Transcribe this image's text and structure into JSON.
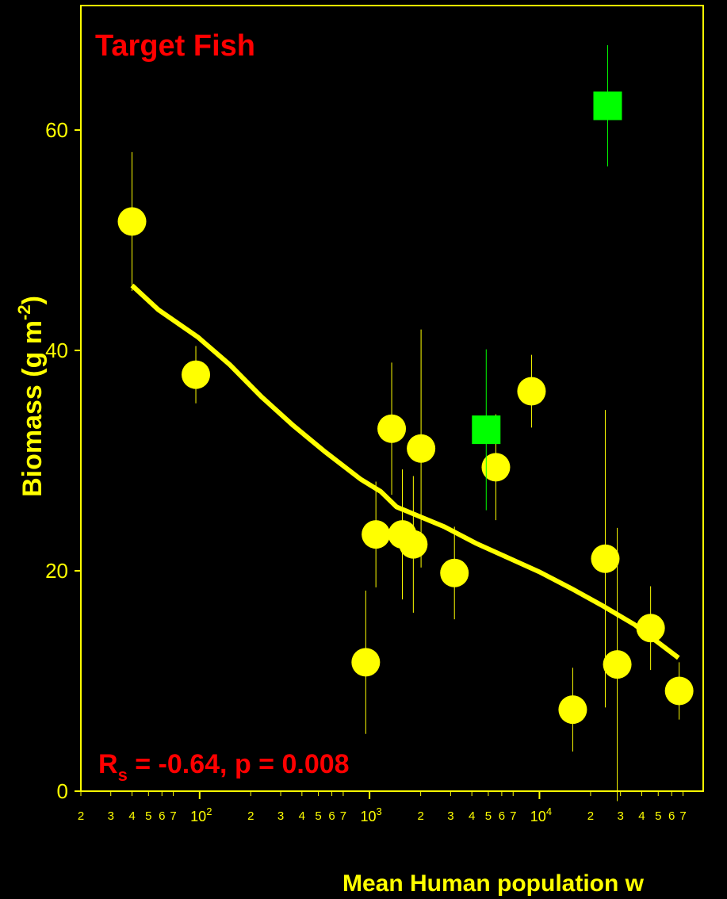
{
  "chart_data": {
    "type": "scatter",
    "title": "Target Fish",
    "title_color": "#ff0000",
    "background": "#000000",
    "axis_color": "#ffff00",
    "x_label": "Mean Human population w",
    "y_label": {
      "text": "Biomass (g m",
      "superscript": "-2",
      "end": ")"
    },
    "annotation": {
      "main": "R",
      "subscript": "s",
      "text": " = -0.64, p = 0.008"
    },
    "x_scale": "log",
    "xlim": [
      20,
      92000
    ],
    "ylim": [
      0,
      71.3
    ],
    "yticks": [
      0,
      20,
      40,
      60
    ],
    "xticks": [
      {
        "value": 20,
        "label": "2"
      },
      {
        "value": 30,
        "label": "3"
      },
      {
        "value": 40,
        "label": "4"
      },
      {
        "value": 50,
        "label": "5"
      },
      {
        "value": 60,
        "label": "6"
      },
      {
        "value": 70,
        "label": "7"
      },
      {
        "value": 100,
        "label": "10",
        "exponent": "2"
      },
      {
        "value": 200,
        "label": "2"
      },
      {
        "value": 300,
        "label": "3"
      },
      {
        "value": 400,
        "label": "4"
      },
      {
        "value": 500,
        "label": "5"
      },
      {
        "value": 600,
        "label": "6"
      },
      {
        "value": 700,
        "label": "7"
      },
      {
        "value": 1000,
        "label": "10",
        "exponent": "3"
      },
      {
        "value": 2000,
        "label": "2"
      },
      {
        "value": 3000,
        "label": "3"
      },
      {
        "value": 4000,
        "label": "4"
      },
      {
        "value": 5000,
        "label": "5"
      },
      {
        "value": 6000,
        "label": "6"
      },
      {
        "value": 7000,
        "label": "7"
      },
      {
        "value": 10000,
        "label": "10",
        "exponent": "4"
      },
      {
        "value": 20000,
        "label": "2"
      },
      {
        "value": 30000,
        "label": "3"
      },
      {
        "value": 40000,
        "label": "4"
      },
      {
        "value": 50000,
        "label": "5"
      },
      {
        "value": 60000,
        "label": "6"
      },
      {
        "value": 70000,
        "label": "7"
      }
    ],
    "series": [
      {
        "marker": "circle",
        "color": "#ffff00",
        "x": [
          40,
          95,
          950,
          1090,
          1350,
          1560,
          1810,
          2010,
          3160,
          5540,
          8980,
          15700,
          24400,
          28700,
          45100,
          66400
        ],
        "values": [
          51.7,
          37.8,
          11.7,
          23.3,
          32.9,
          23.3,
          22.4,
          31.1,
          19.8,
          29.4,
          36.3,
          7.4,
          21.1,
          11.5,
          14.8,
          9.1
        ],
        "errors": [
          6.3,
          2.6,
          6.5,
          4.8,
          6,
          5.9,
          6.2,
          10.8,
          4.2,
          4.8,
          3.3,
          3.8,
          13.5,
          12.4,
          3.8,
          2.6
        ]
      },
      {
        "marker": "square",
        "color": "#00ff00",
        "x": [
          4860,
          25200
        ],
        "values": [
          32.8,
          62.2
        ],
        "errors": [
          7.3,
          5.5
        ]
      }
    ],
    "trend": {
      "color": "#ffff00",
      "x": [
        40,
        57.1,
        97.9,
        150.6,
        231,
        355,
        547,
        889,
        1162,
        1442,
        1991,
        2750,
        4230,
        6500,
        10000,
        15400,
        23700,
        36400,
        65800
      ],
      "values": [
        45.9,
        43.7,
        41.2,
        38.7,
        35.8,
        33.2,
        30.8,
        28.3,
        27.2,
        25.8,
        24.9,
        24.0,
        22.5,
        21.2,
        19.9,
        18.4,
        16.8,
        15.1,
        12.1
      ]
    }
  }
}
